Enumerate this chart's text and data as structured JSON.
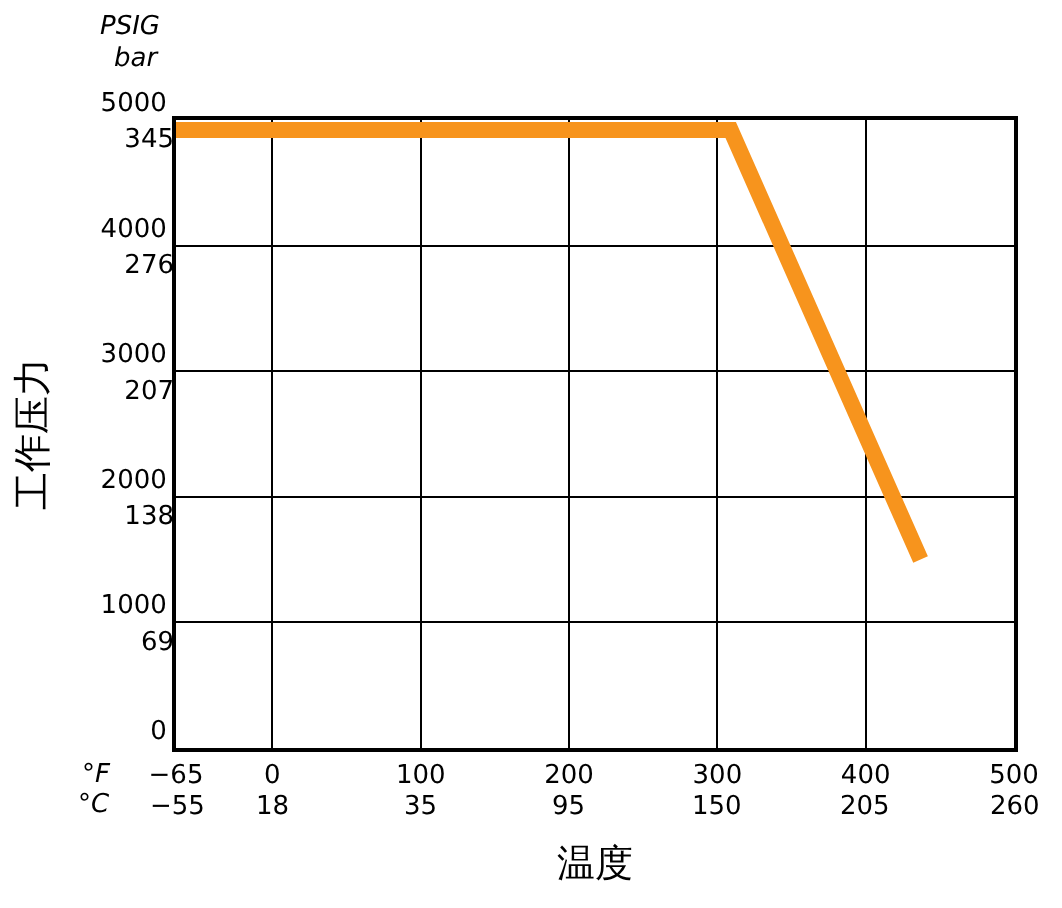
{
  "chart_data": {
    "type": "line",
    "xlabel": "温度",
    "ylabel": "工作压力",
    "x": [
      -65,
      309,
      437
    ],
    "series": [
      {
        "color": "#f7941d",
        "values": [
          4920,
          4920,
          1500
        ]
      }
    ],
    "xlim": [
      -65,
      500
    ],
    "xticks": [
      -65,
      0,
      100,
      200,
      300,
      400,
      500
    ],
    "ylim": [
      0,
      5000
    ],
    "yticks": [
      0,
      1000,
      2000,
      3000,
      4000,
      5000
    ],
    "y2lim": [
      0,
      345
    ],
    "y2ticks": [
      69,
      138,
      207,
      276,
      345
    ],
    "grid": true,
    "marker": "none",
    "line_style": "solid",
    "annotations": [
      "PSIG",
      "bar",
      "°F",
      "°C",
      "−55",
      "18",
      "35",
      "95",
      "150",
      "205",
      "260"
    ]
  }
}
